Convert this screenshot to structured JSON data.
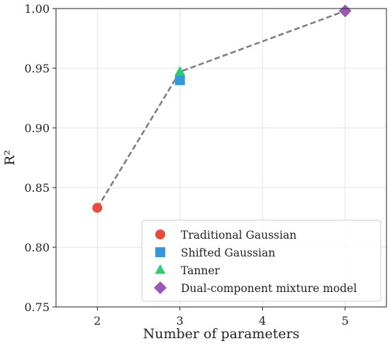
{
  "chart_data": {
    "type": "scatter",
    "title": "",
    "xlabel": "Number of parameters",
    "ylabel": "R²",
    "xlim": [
      1.5,
      5.5
    ],
    "ylim": [
      0.75,
      1.0
    ],
    "xticks": [
      2,
      3,
      4,
      5
    ],
    "xtick_labels": [
      "2",
      "3",
      "4",
      "5"
    ],
    "yticks": [
      0.75,
      0.8,
      0.85,
      0.9,
      0.95,
      1.0
    ],
    "ytick_labels": [
      "0.75",
      "0.80",
      "0.85",
      "0.90",
      "0.95",
      "1.00"
    ],
    "grid": true,
    "legend_position": "bottom-right",
    "trend_line": {
      "style": "dashed",
      "color": "#808080",
      "points": [
        [
          2,
          0.833
        ],
        [
          3,
          0.947
        ],
        [
          5,
          0.998
        ]
      ]
    },
    "series": [
      {
        "name": "Traditional Gaussian",
        "marker": "circle",
        "color": "#e74c3c",
        "x": [
          2
        ],
        "y": [
          0.833
        ]
      },
      {
        "name": "Shifted Gaussian",
        "marker": "square",
        "color": "#3498db",
        "x": [
          3
        ],
        "y": [
          0.94
        ]
      },
      {
        "name": "Tanner",
        "marker": "triangle",
        "color": "#2ecc71",
        "x": [
          3
        ],
        "y": [
          0.947
        ]
      },
      {
        "name": "Dual-component mixture model",
        "marker": "diamond",
        "color": "#9b59b6",
        "x": [
          5
        ],
        "y": [
          0.998
        ]
      }
    ]
  }
}
